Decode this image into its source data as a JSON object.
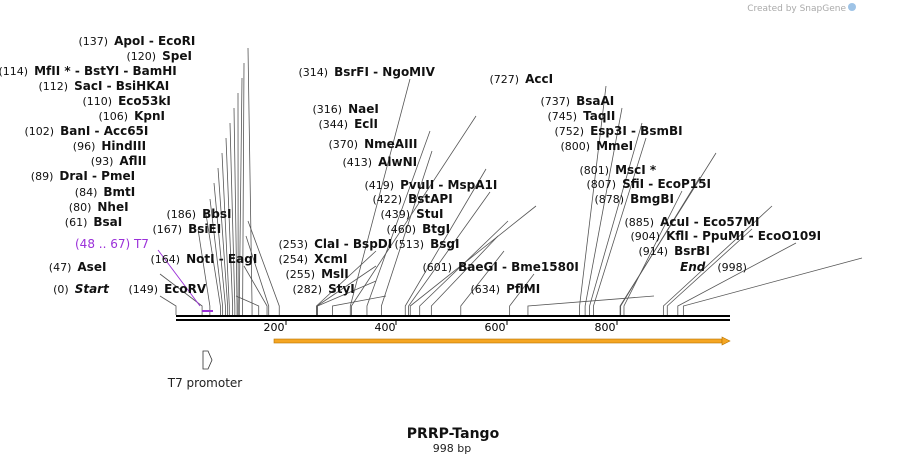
{
  "branding": "Created by SnapGene",
  "map_title": "PRRP-Tango",
  "map_size": "998 bp",
  "feature_label": "T7 promoter",
  "primer": {
    "pos": "(48 .. 67)",
    "name": "T7"
  },
  "ticks": [
    "200",
    "400",
    "600",
    "800"
  ],
  "colors": {
    "orf": "#f5a623",
    "primer": "#9b30d9",
    "backbone": "#000000"
  },
  "sites": [
    {
      "pos": "(137)",
      "names": [
        "ApoI",
        "EcoRI"
      ]
    },
    {
      "pos": "(120)",
      "names": [
        "SpeI"
      ]
    },
    {
      "pos": "(114)",
      "names": [
        "MfII *",
        "BstYI",
        "BamHI"
      ]
    },
    {
      "pos": "(112)",
      "names": [
        "SacI",
        "BsiHKAI"
      ]
    },
    {
      "pos": "(110)",
      "names": [
        "Eco53kI"
      ]
    },
    {
      "pos": "(106)",
      "names": [
        "KpnI"
      ]
    },
    {
      "pos": "(102)",
      "names": [
        "BanI",
        "Acc65I"
      ]
    },
    {
      "pos": "(96)",
      "names": [
        "HindIII"
      ]
    },
    {
      "pos": "(93)",
      "names": [
        "AflII"
      ]
    },
    {
      "pos": "(89)",
      "names": [
        "DraI",
        "PmeI"
      ]
    },
    {
      "pos": "(84)",
      "names": [
        "BmtI"
      ]
    },
    {
      "pos": "(80)",
      "names": [
        "NheI"
      ]
    },
    {
      "pos": "(61)",
      "names": [
        "BsaI"
      ]
    },
    {
      "pos": "(47)",
      "names": [
        "AseI"
      ]
    },
    {
      "pos": "(0)",
      "names": [
        "Start"
      ]
    },
    {
      "pos": "(149)",
      "names": [
        "EcoRV"
      ]
    },
    {
      "pos": "(164)",
      "names": [
        "NotI",
        "EagI"
      ]
    },
    {
      "pos": "(167)",
      "names": [
        "BsiEI"
      ]
    },
    {
      "pos": "(186)",
      "names": [
        "BbsI"
      ]
    },
    {
      "pos": "(253)",
      "names": [
        "ClaI",
        "BspDI"
      ]
    },
    {
      "pos": "(254)",
      "names": [
        "XcmI"
      ]
    },
    {
      "pos": "(255)",
      "names": [
        "MslI"
      ]
    },
    {
      "pos": "(282)",
      "names": [
        "StyI"
      ]
    },
    {
      "pos": "(314)",
      "names": [
        "BsrFI",
        "NgoMIV"
      ]
    },
    {
      "pos": "(316)",
      "names": [
        "NaeI"
      ]
    },
    {
      "pos": "(344)",
      "names": [
        "EclI"
      ]
    },
    {
      "pos": "(370)",
      "names": [
        "NmeAIII"
      ]
    },
    {
      "pos": "(413)",
      "names": [
        "AlwNI"
      ]
    },
    {
      "pos": "(419)",
      "names": [
        "PvuII",
        "MspA1I"
      ]
    },
    {
      "pos": "(422)",
      "names": [
        "BstAPI"
      ]
    },
    {
      "pos": "(439)",
      "names": [
        "StuI"
      ]
    },
    {
      "pos": "(460)",
      "names": [
        "BtgI"
      ]
    },
    {
      "pos": "(513)",
      "names": [
        "BsgI"
      ]
    },
    {
      "pos": "(601)",
      "names": [
        "BaeGI",
        "Bme1580I"
      ]
    },
    {
      "pos": "(634)",
      "names": [
        "PflMI"
      ]
    },
    {
      "pos": "(727)",
      "names": [
        "AccI"
      ]
    },
    {
      "pos": "(737)",
      "names": [
        "BsaAI"
      ]
    },
    {
      "pos": "(745)",
      "names": [
        "TaqII"
      ]
    },
    {
      "pos": "(752)",
      "names": [
        "Esp3I",
        "BsmBI"
      ]
    },
    {
      "pos": "(800)",
      "names": [
        "MmeI"
      ]
    },
    {
      "pos": "(801)",
      "names": [
        "MscI *"
      ]
    },
    {
      "pos": "(807)",
      "names": [
        "SfiI",
        "EcoP15I"
      ]
    },
    {
      "pos": "(878)",
      "names": [
        "BmgBI"
      ]
    },
    {
      "pos": "(885)",
      "names": [
        "AcuI",
        "Eco57MI"
      ]
    },
    {
      "pos": "(904)",
      "names": [
        "KflI",
        "PpuMI",
        "EcoO109I"
      ]
    },
    {
      "pos": "(914)",
      "names": [
        "BsrBI"
      ]
    },
    {
      "pos": "(998)",
      "names": [
        "End"
      ]
    }
  ]
}
